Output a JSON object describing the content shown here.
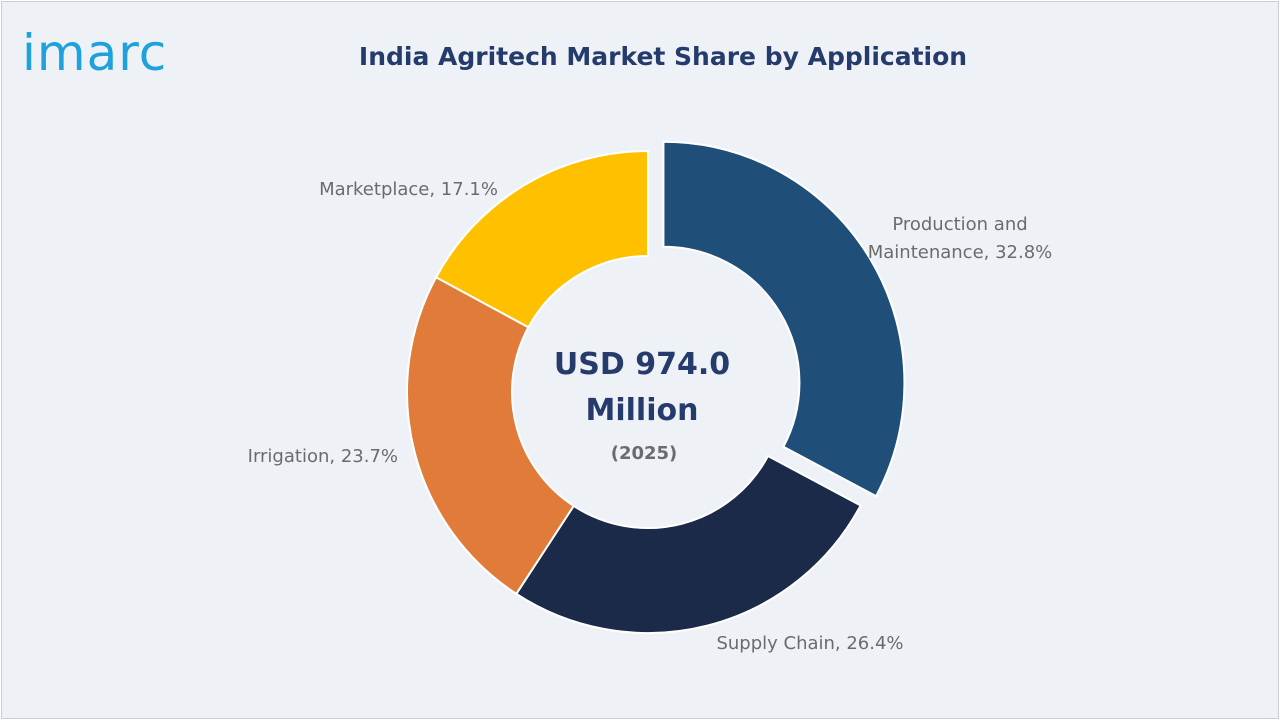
{
  "brand": {
    "logo_text": "imarc",
    "logo_color": "#1fa2dc"
  },
  "colors": {
    "title": "#243b6b",
    "center_text": "#243b6b",
    "label": "#6b6b6b",
    "background": "#eef2f7"
  },
  "chart_data": {
    "type": "pie",
    "title": "India Agritech Market Share by Application",
    "center_value": [
      "USD 974.0",
      "Million"
    ],
    "center_note": "(2025)",
    "unit": "%",
    "slices": [
      {
        "name": "Production and Maintenance",
        "value": 32.8,
        "color": "#1f4e79",
        "exploded": true,
        "label": [
          "Production and",
          "Maintenance, 32.8%"
        ]
      },
      {
        "name": "Supply Chain",
        "value": 26.4,
        "color": "#1c2a4a",
        "exploded": false,
        "label": [
          "Supply Chain, 26.4%"
        ]
      },
      {
        "name": "Irrigation",
        "value": 23.7,
        "color": "#e07b39",
        "exploded": false,
        "label": [
          "Irrigation, 23.7%"
        ]
      },
      {
        "name": "Marketplace",
        "value": 17.1,
        "color": "#ffc000",
        "exploded": false,
        "label": [
          "Marketplace, 17.1%"
        ]
      }
    ]
  }
}
